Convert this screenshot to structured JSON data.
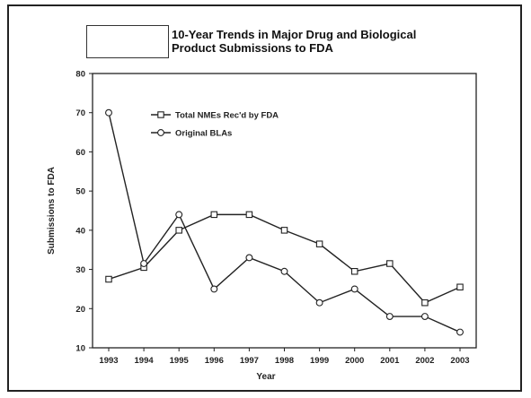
{
  "title": {
    "line1": "10-Year Trends in Major Drug and Biological",
    "line2": "Product Submissions to FDA"
  },
  "chart_data": {
    "type": "line",
    "x": [
      1993,
      1994,
      1995,
      1996,
      1997,
      1998,
      1999,
      2000,
      2001,
      2002,
      2003
    ],
    "xlabel": "Year",
    "ylabel": "Submissions to FDA",
    "ylim": [
      10,
      80
    ],
    "yticks": [
      10,
      20,
      30,
      40,
      50,
      60,
      70,
      80
    ],
    "grid": false,
    "legend_position": "top-left",
    "series": [
      {
        "name": "Total NMEs Rec'd by FDA",
        "marker": "square",
        "values": [
          27.5,
          30.5,
          40,
          44,
          44,
          40,
          36.5,
          29.5,
          31.5,
          21.5,
          25.5
        ]
      },
      {
        "name": "Original BLAs",
        "marker": "circle",
        "values": [
          70,
          31.5,
          44,
          25,
          33,
          29.5,
          21.5,
          25,
          18,
          18,
          14
        ]
      }
    ]
  }
}
